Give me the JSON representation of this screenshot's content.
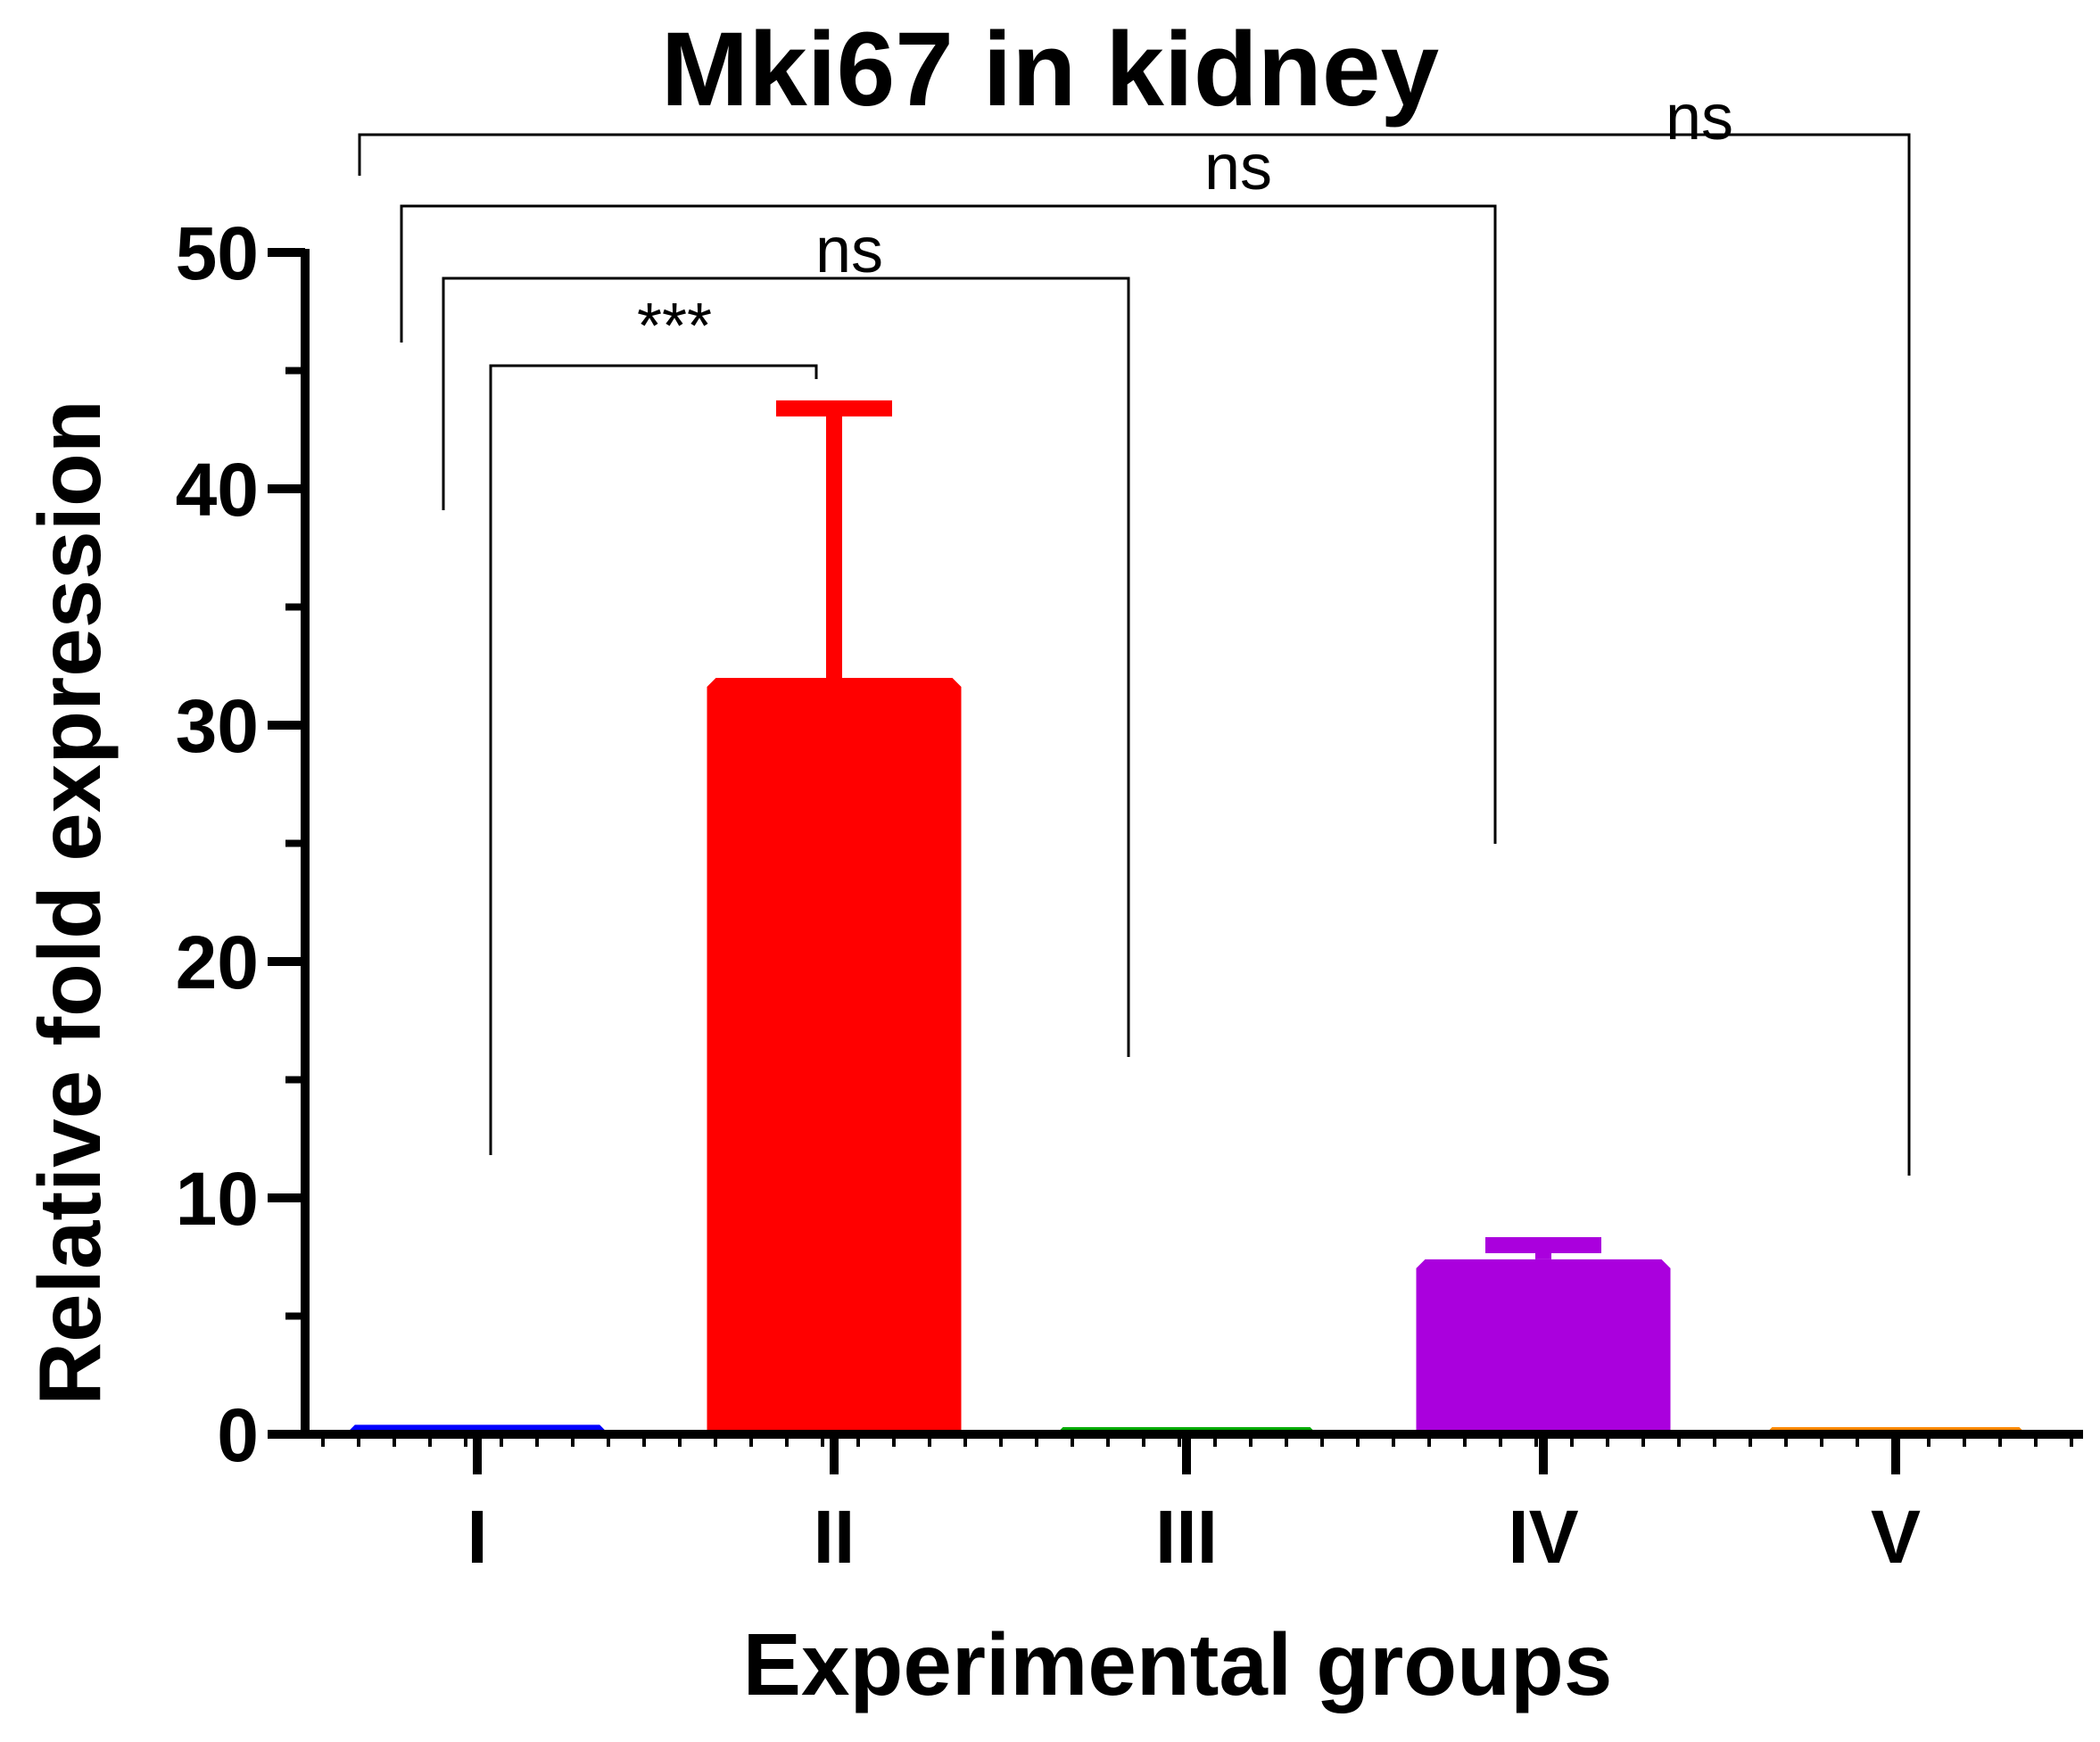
{
  "chart_data": {
    "type": "bar",
    "title": "Mki67 in kidney",
    "xlabel": "Experimental groups",
    "ylabel": "Relative fold expression",
    "categories": [
      "I",
      "II",
      "III",
      "IV",
      "V"
    ],
    "values": [
      0.4,
      32.0,
      0.3,
      7.4,
      0.3
    ],
    "error_upper": [
      0.0,
      43.4,
      0.0,
      8.0,
      0.0
    ],
    "colors": [
      "#0000ff",
      "#ff0000",
      "#00aa00",
      "#aa00dd",
      "#ff8800"
    ],
    "ylim": [
      0,
      50
    ],
    "yticks": [
      "0",
      "10",
      "20",
      "30",
      "40",
      "50"
    ],
    "grid": false,
    "significance": [
      {
        "from": "I",
        "to": "II",
        "label": "***"
      },
      {
        "from": "I",
        "to": "III",
        "label": "ns"
      },
      {
        "from": "I",
        "to": "IV",
        "label": "ns"
      },
      {
        "from": "I",
        "to": "V",
        "label": "ns"
      }
    ]
  }
}
